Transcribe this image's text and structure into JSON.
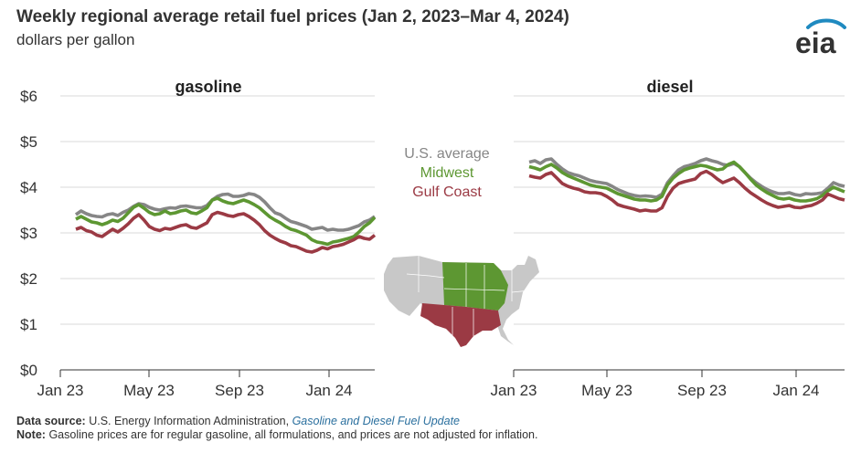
{
  "header": {
    "title": "Weekly regional average retail fuel prices (Jan 2, 2023–Mar 4, 2024)",
    "subtitle": "dollars per gallon",
    "logo_text": "eia"
  },
  "legend": {
    "items": [
      {
        "label": "U.S. average",
        "color": "#868686"
      },
      {
        "label": "Midwest",
        "color": "#5d9732"
      },
      {
        "label": "Gulf Coast",
        "color": "#9b3a44"
      }
    ]
  },
  "chart_data": [
    {
      "type": "line",
      "title": "gasoline",
      "ylabel": "dollars per gallon",
      "ylim": [
        0,
        6
      ],
      "yticks": [
        "$0",
        "$1",
        "$2",
        "$3",
        "$4",
        "$5",
        "$6"
      ],
      "xticks": [
        "Jan 23",
        "May 23",
        "Sep 23",
        "Jan 24"
      ],
      "series": [
        {
          "name": "U.S. average",
          "color": "#868686",
          "values": [
            3.4,
            3.48,
            3.42,
            3.38,
            3.36,
            3.35,
            3.4,
            3.42,
            3.38,
            3.45,
            3.5,
            3.58,
            3.64,
            3.62,
            3.56,
            3.52,
            3.5,
            3.53,
            3.55,
            3.54,
            3.58,
            3.59,
            3.57,
            3.55,
            3.55,
            3.6,
            3.72,
            3.8,
            3.84,
            3.85,
            3.8,
            3.8,
            3.82,
            3.86,
            3.84,
            3.78,
            3.68,
            3.55,
            3.44,
            3.4,
            3.32,
            3.25,
            3.22,
            3.18,
            3.14,
            3.08,
            3.1,
            3.12,
            3.06,
            3.08,
            3.06,
            3.06,
            3.08,
            3.12,
            3.16,
            3.24,
            3.28,
            3.36
          ]
        },
        {
          "name": "Midwest",
          "color": "#5d9732",
          "values": [
            3.3,
            3.36,
            3.3,
            3.24,
            3.22,
            3.18,
            3.22,
            3.28,
            3.25,
            3.32,
            3.44,
            3.56,
            3.62,
            3.54,
            3.45,
            3.4,
            3.42,
            3.48,
            3.42,
            3.44,
            3.48,
            3.5,
            3.44,
            3.42,
            3.48,
            3.55,
            3.72,
            3.76,
            3.7,
            3.66,
            3.64,
            3.68,
            3.72,
            3.68,
            3.62,
            3.55,
            3.45,
            3.35,
            3.28,
            3.22,
            3.14,
            3.08,
            3.05,
            3.0,
            2.95,
            2.85,
            2.8,
            2.78,
            2.75,
            2.8,
            2.82,
            2.85,
            2.88,
            2.92,
            3.02,
            3.14,
            3.22,
            3.34
          ]
        },
        {
          "name": "Gulf Coast",
          "color": "#9b3a44",
          "values": [
            3.08,
            3.12,
            3.05,
            3.02,
            2.95,
            2.92,
            3.0,
            3.08,
            3.02,
            3.1,
            3.2,
            3.32,
            3.4,
            3.28,
            3.14,
            3.08,
            3.05,
            3.1,
            3.08,
            3.12,
            3.16,
            3.18,
            3.12,
            3.1,
            3.16,
            3.22,
            3.4,
            3.45,
            3.42,
            3.38,
            3.36,
            3.4,
            3.42,
            3.36,
            3.28,
            3.18,
            3.05,
            2.95,
            2.88,
            2.82,
            2.78,
            2.72,
            2.7,
            2.65,
            2.6,
            2.58,
            2.62,
            2.68,
            2.65,
            2.7,
            2.72,
            2.75,
            2.8,
            2.85,
            2.92,
            2.88,
            2.86,
            2.95
          ]
        }
      ]
    },
    {
      "type": "line",
      "title": "diesel",
      "ylabel": "dollars per gallon",
      "ylim": [
        0,
        6
      ],
      "yticks": [
        "$0",
        "$1",
        "$2",
        "$3",
        "$4",
        "$5",
        "$6"
      ],
      "xticks": [
        "Jan 23",
        "May 23",
        "Sep 23",
        "Jan 24"
      ],
      "series": [
        {
          "name": "U.S. average",
          "color": "#868686",
          "values": [
            4.55,
            4.58,
            4.52,
            4.6,
            4.62,
            4.5,
            4.4,
            4.32,
            4.28,
            4.25,
            4.2,
            4.15,
            4.12,
            4.1,
            4.08,
            4.02,
            3.95,
            3.9,
            3.85,
            3.82,
            3.8,
            3.81,
            3.8,
            3.78,
            3.85,
            4.1,
            4.25,
            4.38,
            4.45,
            4.48,
            4.52,
            4.58,
            4.62,
            4.58,
            4.55,
            4.5,
            4.48,
            4.52,
            4.45,
            4.32,
            4.2,
            4.1,
            4.02,
            3.95,
            3.9,
            3.86,
            3.86,
            3.88,
            3.84,
            3.82,
            3.86,
            3.85,
            3.86,
            3.88,
            3.98,
            4.1,
            4.05,
            4.02
          ]
        },
        {
          "name": "Midwest",
          "color": "#5d9732",
          "values": [
            4.45,
            4.42,
            4.38,
            4.45,
            4.5,
            4.42,
            4.32,
            4.25,
            4.2,
            4.15,
            4.1,
            4.05,
            4.02,
            4.0,
            3.98,
            3.92,
            3.86,
            3.82,
            3.78,
            3.74,
            3.72,
            3.72,
            3.7,
            3.72,
            3.8,
            4.05,
            4.2,
            4.3,
            4.38,
            4.42,
            4.45,
            4.48,
            4.46,
            4.42,
            4.38,
            4.4,
            4.5,
            4.55,
            4.45,
            4.32,
            4.18,
            4.05,
            3.96,
            3.88,
            3.82,
            3.76,
            3.74,
            3.76,
            3.72,
            3.7,
            3.7,
            3.72,
            3.75,
            3.82,
            3.92,
            4.0,
            3.95,
            3.9
          ]
        },
        {
          "name": "Gulf Coast",
          "color": "#9b3a44",
          "values": [
            4.25,
            4.22,
            4.2,
            4.28,
            4.32,
            4.2,
            4.08,
            4.02,
            3.98,
            3.95,
            3.9,
            3.88,
            3.88,
            3.86,
            3.8,
            3.72,
            3.62,
            3.58,
            3.55,
            3.52,
            3.48,
            3.5,
            3.48,
            3.48,
            3.55,
            3.8,
            3.98,
            4.08,
            4.12,
            4.15,
            4.18,
            4.3,
            4.35,
            4.28,
            4.18,
            4.1,
            4.15,
            4.2,
            4.1,
            3.98,
            3.88,
            3.8,
            3.72,
            3.65,
            3.6,
            3.56,
            3.58,
            3.6,
            3.56,
            3.55,
            3.58,
            3.6,
            3.65,
            3.72,
            3.85,
            3.8,
            3.75,
            3.72
          ]
        }
      ]
    }
  ],
  "map": {
    "regions": [
      {
        "name": "rest of U.S.",
        "color": "#c8c8c8"
      },
      {
        "name": "Midwest",
        "color": "#5d9732"
      },
      {
        "name": "Gulf Coast",
        "color": "#9b3a44"
      }
    ]
  },
  "footer": {
    "source_label": "Data source:",
    "source_text": "U.S. Energy Information Administration,",
    "source_link": "Gasoline and Diesel Fuel Update",
    "note_label": "Note:",
    "note_text": "Gasoline prices are for regular gasoline, all formulations, and prices are not adjusted for inflation."
  }
}
